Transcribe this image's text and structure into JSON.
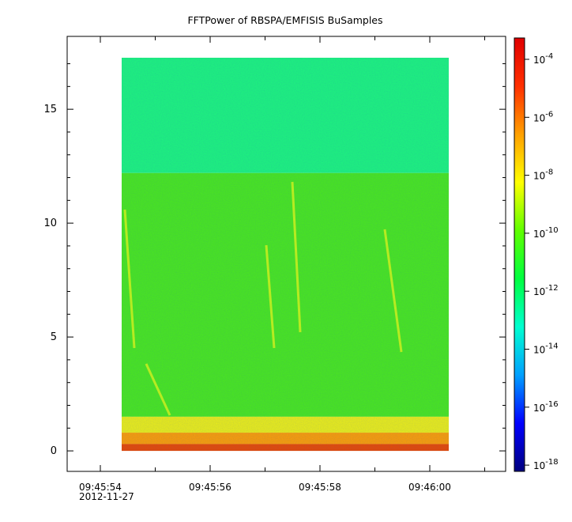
{
  "chart_data": {
    "type": "heatmap",
    "title": "FFTPower of RBSPA/EMFISIS  BuSamples",
    "x_ticks": [
      "09:45:54",
      "09:45:56",
      "09:45:58",
      "09:46:00"
    ],
    "x_date_label": "2012-11-27",
    "y_ticks": [
      0,
      5,
      10,
      15
    ],
    "y_range": [
      -0.9,
      18.2
    ],
    "colorbar": {
      "scale": "log",
      "ticks": [
        {
          "base": "10",
          "exp": "-4"
        },
        {
          "base": "10",
          "exp": "-6"
        },
        {
          "base": "10",
          "exp": "-8"
        },
        {
          "base": "10",
          "exp": "-10"
        },
        {
          "base": "10",
          "exp": "-12"
        },
        {
          "base": "10",
          "exp": "-14"
        },
        {
          "base": "10",
          "exp": "-16"
        },
        {
          "base": "10",
          "exp": "-18"
        }
      ],
      "colors": [
        "#00007f",
        "#0000ff",
        "#00a0ff",
        "#00ffd0",
        "#00ff40",
        "#60ff00",
        "#ffff00",
        "#ffa000",
        "#ff3000",
        "#e00000"
      ]
    },
    "data_extent": {
      "y_min": 0,
      "y_max": 17.5
    },
    "bands": [
      {
        "y_from": 12.2,
        "y_to": 17.5,
        "color": "#1ff57c"
      },
      {
        "y_from": 1.5,
        "y_to": 12.2,
        "color": "#4be81d"
      },
      {
        "y_from": 0.8,
        "y_to": 1.5,
        "color": "#ecee17"
      },
      {
        "y_from": 0.3,
        "y_to": 0.8,
        "color": "#fc9e05"
      },
      {
        "y_from": 0,
        "y_to": 0.3,
        "color": "#e84a03"
      }
    ]
  }
}
